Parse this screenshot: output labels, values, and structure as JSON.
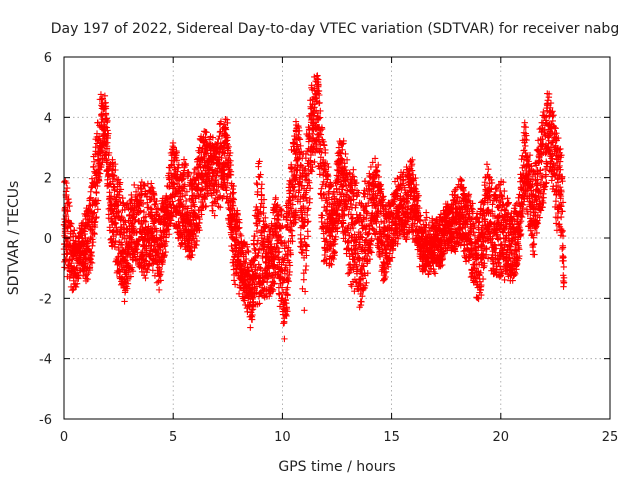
{
  "chart_data": {
    "type": "scatter",
    "title": "Day 197 of 2022, Sidereal Day-to-day VTEC variation (SDTVAR) for receiver nabg",
    "xlabel": "GPS time / hours",
    "ylabel": "SDTVAR / TECUs",
    "xlim": [
      0,
      25
    ],
    "ylim": [
      -6,
      6
    ],
    "xticks": [
      0,
      5,
      10,
      15,
      20,
      25
    ],
    "yticks": [
      -6,
      -4,
      -2,
      0,
      2,
      4,
      6
    ],
    "grid": true,
    "marker": "+",
    "color": "#ff0000",
    "series": [
      {
        "name": "SDTVAR",
        "envelope_note": "approximate trace envelope: [hour, center, half-spread]",
        "envelope": [
          [
            0.0,
            0.5,
            1.5
          ],
          [
            0.3,
            -0.3,
            1.2
          ],
          [
            0.6,
            -0.8,
            0.7
          ],
          [
            0.9,
            -0.4,
            0.9
          ],
          [
            1.2,
            0.3,
            1.4
          ],
          [
            1.5,
            2.0,
            1.5
          ],
          [
            1.7,
            3.6,
            1.2
          ],
          [
            1.9,
            3.8,
            1.0
          ],
          [
            2.1,
            1.2,
            1.5
          ],
          [
            2.5,
            0.5,
            1.6
          ],
          [
            2.8,
            -0.8,
            1.6
          ],
          [
            3.2,
            0.5,
            1.2
          ],
          [
            3.6,
            0.2,
            1.6
          ],
          [
            4.0,
            0.6,
            1.2
          ],
          [
            4.3,
            -0.5,
            1.3
          ],
          [
            4.6,
            0.5,
            1.0
          ],
          [
            5.0,
            1.8,
            1.2
          ],
          [
            5.4,
            1.2,
            1.4
          ],
          [
            5.8,
            0.6,
            1.3
          ],
          [
            6.2,
            1.8,
            1.5
          ],
          [
            6.6,
            2.5,
            1.0
          ],
          [
            7.0,
            2.0,
            1.3
          ],
          [
            7.4,
            3.0,
            1.2
          ],
          [
            7.8,
            0.0,
            1.4
          ],
          [
            8.2,
            -1.0,
            1.0
          ],
          [
            8.6,
            -2.0,
            1.0
          ],
          [
            8.9,
            0.5,
            2.5
          ],
          [
            9.3,
            -1.0,
            1.0
          ],
          [
            9.7,
            0.0,
            1.3
          ],
          [
            10.1,
            -1.5,
            2.0
          ],
          [
            10.4,
            1.0,
            1.6
          ],
          [
            10.7,
            2.8,
            1.4
          ],
          [
            11.0,
            0.0,
            2.6
          ],
          [
            11.3,
            3.2,
            1.5
          ],
          [
            11.6,
            4.5,
            1.2
          ],
          [
            11.9,
            1.0,
            2.0
          ],
          [
            12.3,
            0.5,
            1.2
          ],
          [
            12.7,
            2.0,
            1.3
          ],
          [
            13.1,
            0.5,
            2.0
          ],
          [
            13.5,
            -0.5,
            1.8
          ],
          [
            13.9,
            0.3,
            1.5
          ],
          [
            14.3,
            1.5,
            1.3
          ],
          [
            14.7,
            -0.5,
            1.3
          ],
          [
            15.1,
            0.8,
            1.0
          ],
          [
            15.5,
            1.0,
            1.0
          ],
          [
            15.9,
            1.5,
            1.2
          ],
          [
            16.3,
            0.0,
            0.9
          ],
          [
            16.8,
            -0.4,
            0.8
          ],
          [
            17.5,
            0.2,
            0.7
          ],
          [
            18.0,
            0.8,
            1.0
          ],
          [
            18.5,
            0.5,
            1.2
          ],
          [
            19.0,
            -1.0,
            1.4
          ],
          [
            19.3,
            1.0,
            1.4
          ],
          [
            19.7,
            0.0,
            1.5
          ],
          [
            20.0,
            0.5,
            1.6
          ],
          [
            20.4,
            -0.3,
            1.2
          ],
          [
            20.8,
            0.2,
            0.9
          ],
          [
            21.1,
            2.5,
            1.3
          ],
          [
            21.5,
            0.8,
            1.3
          ],
          [
            21.9,
            2.5,
            1.5
          ],
          [
            22.2,
            3.8,
            1.2
          ],
          [
            22.5,
            2.0,
            1.5
          ],
          [
            22.8,
            1.5,
            1.5
          ],
          [
            22.9,
            -1.8,
            0.6
          ]
        ]
      }
    ]
  }
}
